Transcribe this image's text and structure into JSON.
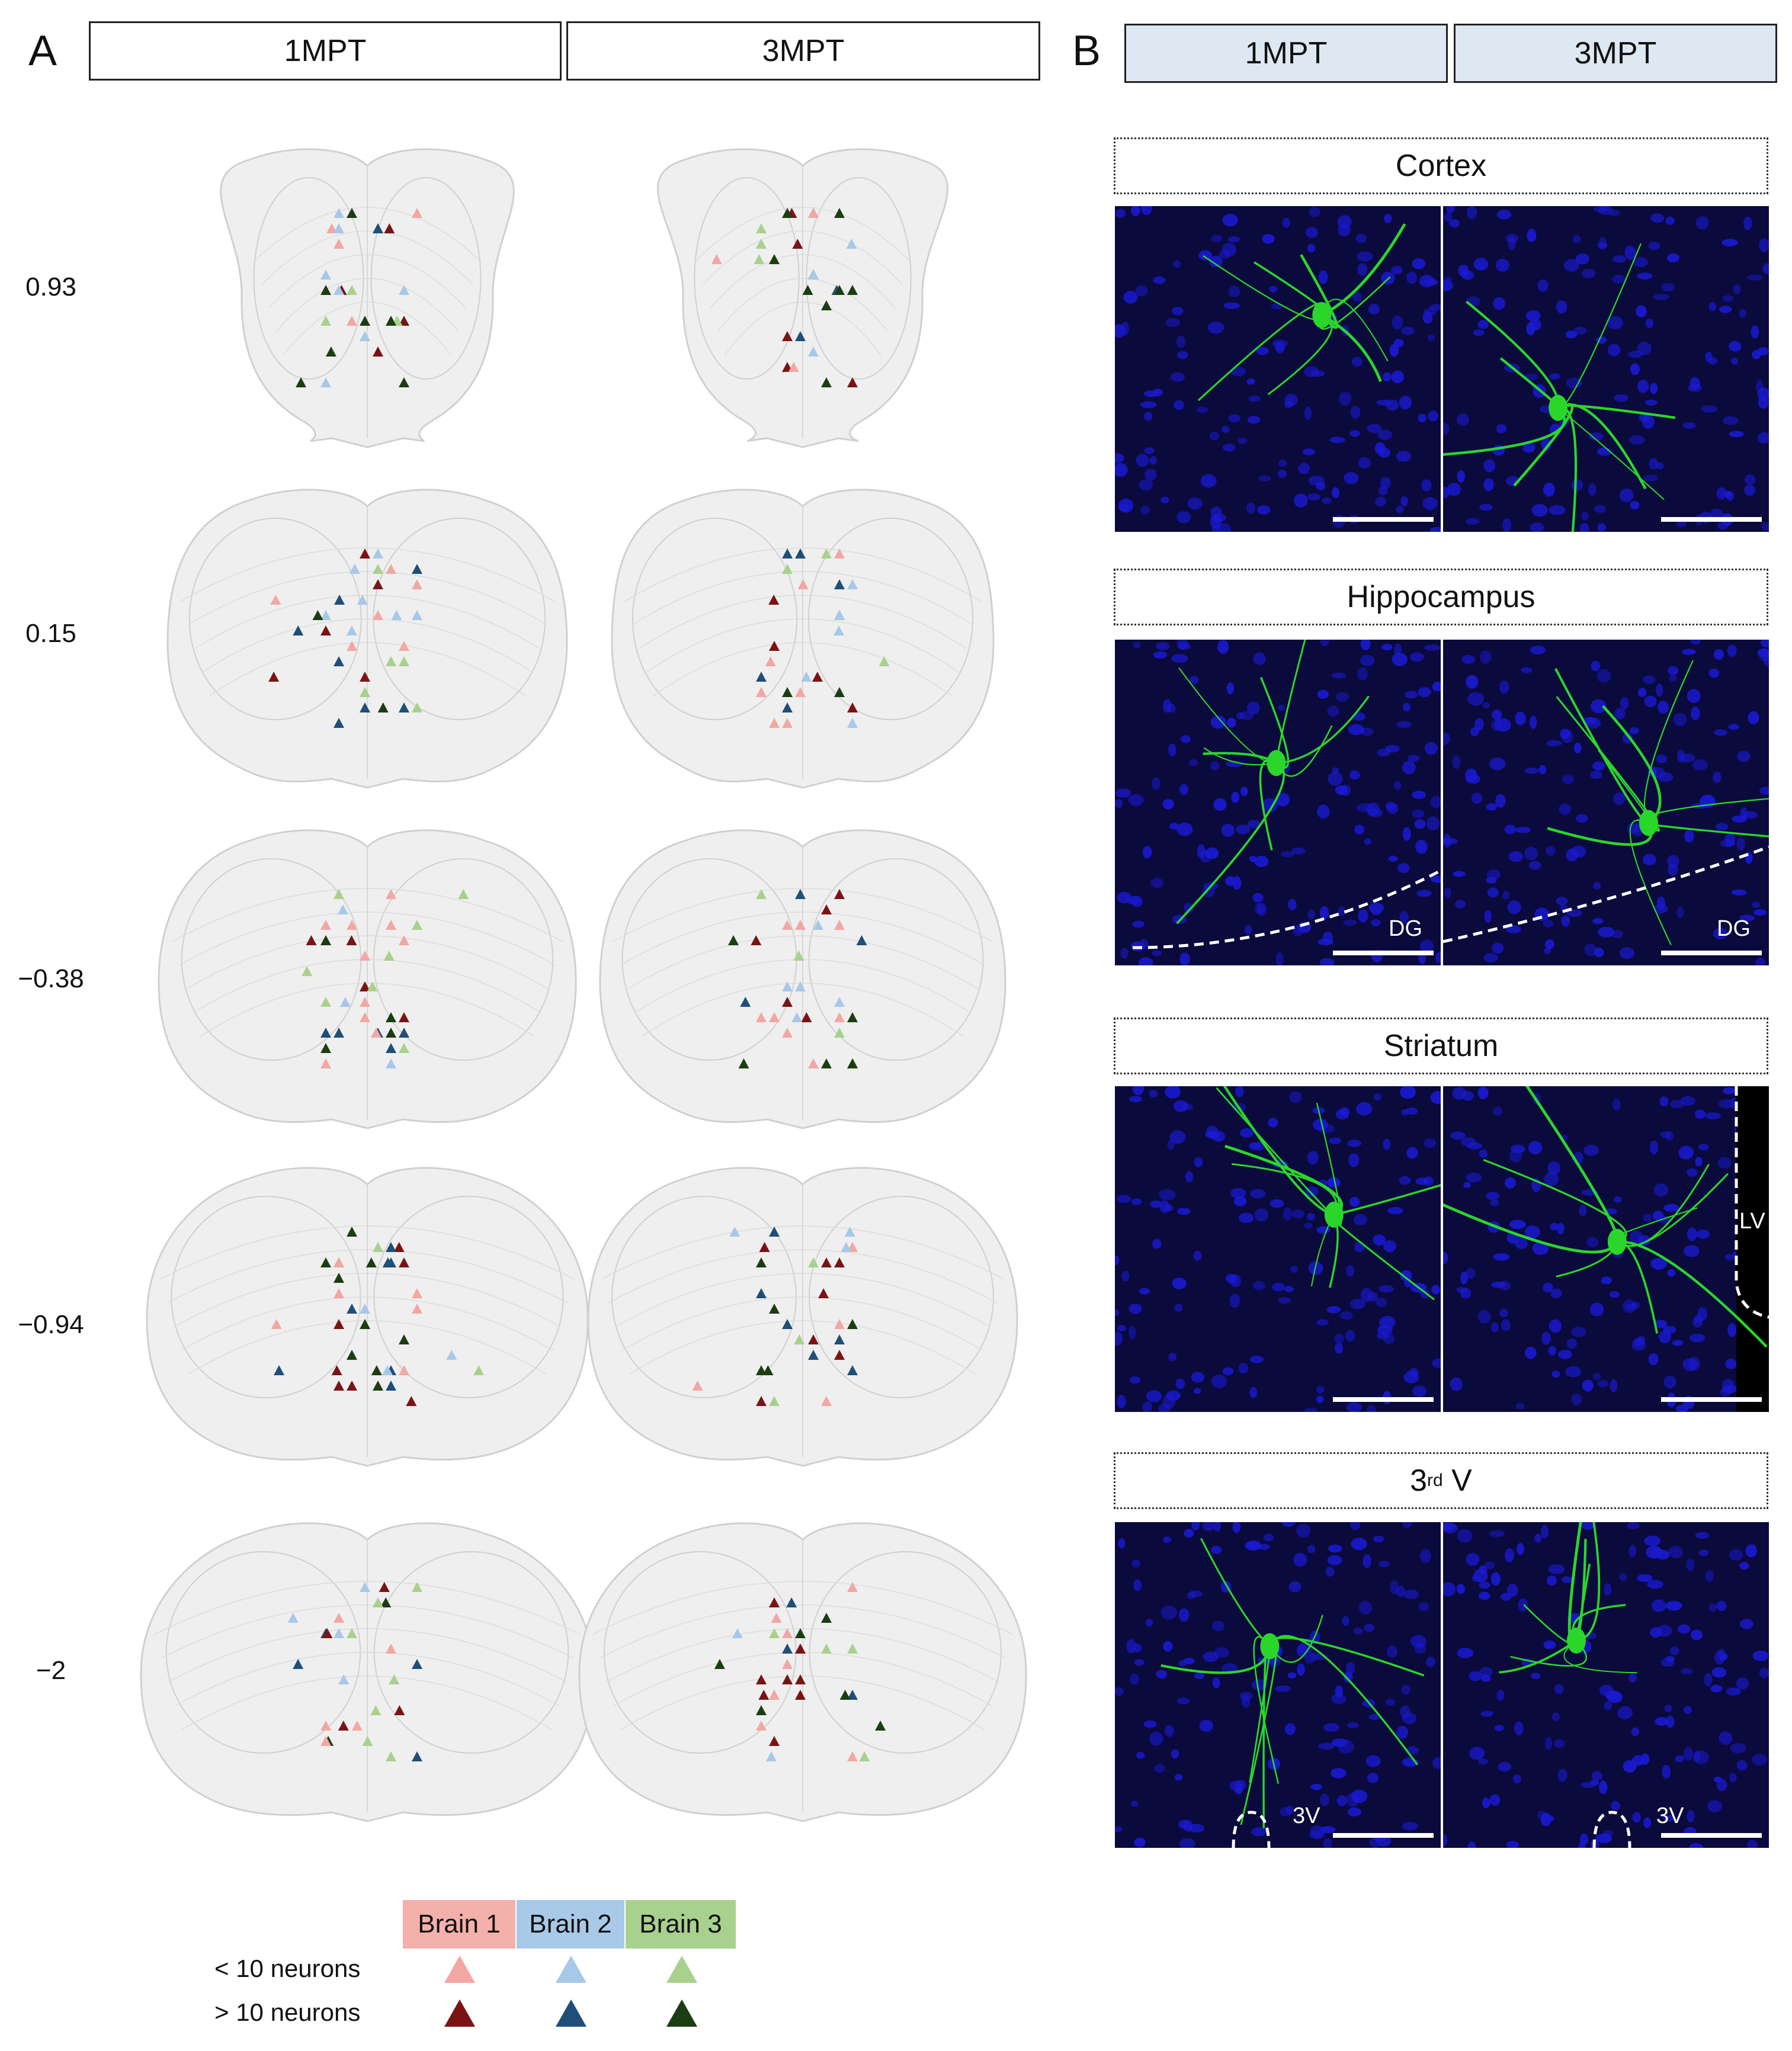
{
  "panel_a": {
    "letter": "A",
    "columns": [
      "1MPT",
      "3MPT"
    ],
    "bregma_levels": [
      "0.93",
      "0.15",
      "−0.38",
      "−0.94",
      "−2"
    ]
  },
  "panel_b": {
    "letter": "B",
    "columns": [
      "1MPT",
      "3MPT"
    ],
    "regions": [
      {
        "title": "Cortex",
        "labels": [
          "",
          ""
        ]
      },
      {
        "title": "Hippocampus",
        "labels": [
          "DG",
          "DG"
        ]
      },
      {
        "title": "Striatum",
        "labels": [
          "",
          "LV"
        ]
      },
      {
        "title_main": "3",
        "title_sup": "rd",
        "title_tail": " V",
        "labels": [
          "3V",
          "3V"
        ]
      }
    ]
  },
  "legend": {
    "brains": [
      "Brain 1",
      "Brain 2",
      "Brain 3"
    ],
    "rows": [
      "< 10 neurons",
      "> 10 neurons"
    ],
    "colors": {
      "brain1_light": "#f2a7a3",
      "brain1_dark": "#7a1414",
      "brain2_light": "#a8c8e8",
      "brain2_dark": "#1f4e79",
      "brain3_light": "#a9d18e",
      "brain3_dark": "#1b3d12",
      "brain1_box": "#f4b0ab",
      "brain2_box": "#a9c9e8",
      "brain3_box": "#a9d18e"
    }
  },
  "colors": {
    "atlas_fill": "#efefef",
    "atlas_stroke": "#d0d0d0",
    "micro_bg": "#0a0a3c",
    "nuclei": "#1a1ad6",
    "neuron": "#2bd62b",
    "header_blue": "#dde8f3"
  }
}
